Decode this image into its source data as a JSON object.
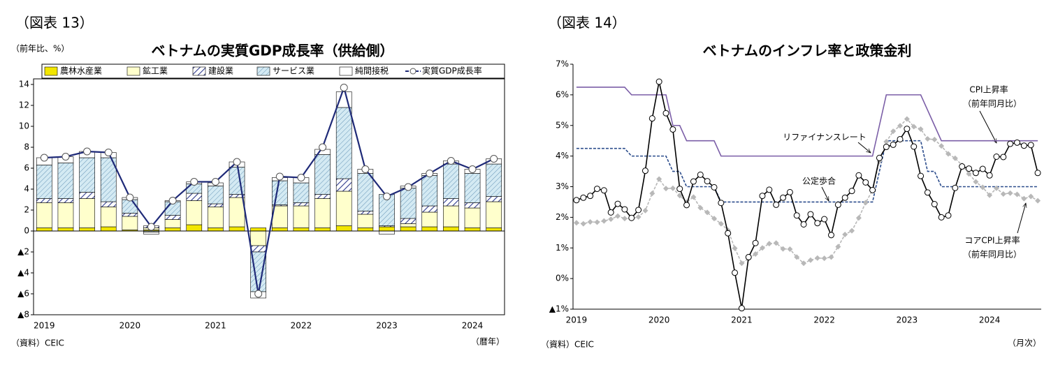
{
  "chart_data": [
    {
      "type": "bar",
      "stacked": true,
      "label": "（図表 13）",
      "title": "ベトナムの実質GDP成長率（供給側）",
      "y_label": "（前年比、%）",
      "source": "（資料）CEIC",
      "x_label": "（暦年）",
      "categories": [
        "2019",
        null,
        null,
        null,
        "2020",
        null,
        null,
        null,
        "2021",
        null,
        null,
        null,
        "2022",
        null,
        null,
        null,
        "2023",
        null,
        null,
        null,
        "2024",
        null
      ],
      "series": [
        {
          "name": "農林水産業",
          "color": "#f2e600",
          "values": [
            0.3,
            0.3,
            0.3,
            0.4,
            0.1,
            0.1,
            0.3,
            0.6,
            0.3,
            0.4,
            0.3,
            0.3,
            0.3,
            0.3,
            0.5,
            0.3,
            0.4,
            0.4,
            0.4,
            0.4,
            0.3,
            0.3
          ]
        },
        {
          "name": "鉱工業",
          "color": "#ffffcc",
          "values": [
            2.4,
            2.4,
            2.8,
            1.9,
            1.3,
            0.2,
            0.8,
            2.3,
            2.0,
            2.8,
            -1.4,
            2.1,
            2.1,
            2.8,
            3.3,
            1.3,
            0.0,
            0.3,
            1.4,
            2.0,
            1.9,
            2.5
          ]
        },
        {
          "name": "建設業",
          "color": "#ffffff",
          "hatch": "#2e3a8c",
          "values": [
            0.4,
            0.4,
            0.6,
            0.5,
            0.3,
            0.2,
            0.4,
            0.7,
            0.3,
            0.3,
            -0.6,
            0.1,
            0.3,
            0.4,
            1.2,
            0.3,
            0.1,
            0.5,
            0.6,
            0.7,
            0.5,
            0.5
          ]
        },
        {
          "name": "サービス業",
          "color": "#d4eaf3",
          "hatch": "#4a7fa8",
          "values": [
            3.2,
            3.4,
            3.3,
            4.2,
            1.3,
            -0.1,
            1.3,
            0.9,
            1.7,
            2.6,
            -3.8,
            2.3,
            1.9,
            3.8,
            6.8,
            3.6,
            3.0,
            2.9,
            2.9,
            3.3,
            2.8,
            3.1
          ]
        },
        {
          "name": "純間接税",
          "color": "#ffffff",
          "values": [
            0.7,
            0.6,
            0.6,
            0.5,
            0.2,
            -0.2,
            0.1,
            0.2,
            0.3,
            0.5,
            -0.6,
            0.3,
            0.5,
            0.5,
            1.5,
            0.4,
            -0.3,
            0.2,
            0.2,
            0.3,
            0.4,
            0.5
          ]
        },
        {
          "name": "実質GDP成長率",
          "type": "line",
          "color": "#1f2a78",
          "values": [
            7.0,
            7.1,
            7.6,
            7.5,
            3.2,
            0.4,
            2.9,
            4.7,
            4.7,
            6.6,
            -6.0,
            5.2,
            5.1,
            8.0,
            13.7,
            5.9,
            3.3,
            4.2,
            5.5,
            6.7,
            5.9,
            6.9
          ]
        }
      ],
      "ylim": [
        -8,
        14
      ],
      "yticks": [
        {
          "value": -8,
          "label": "▲8"
        },
        {
          "value": -6,
          "label": "▲6"
        },
        {
          "value": -4,
          "label": "▲4"
        },
        {
          "value": -2,
          "label": "▲2"
        },
        0,
        2,
        4,
        6,
        8,
        10,
        12,
        14
      ]
    },
    {
      "type": "line",
      "label": "（図表 14）",
      "title": "ベトナムのインフレ率と政策金利",
      "source": "（資料）CEIC",
      "x_label": "（月次）",
      "categories": [
        "2019",
        null,
        null,
        null,
        null,
        null,
        null,
        null,
        null,
        null,
        null,
        null,
        "2020",
        null,
        null,
        null,
        null,
        null,
        null,
        null,
        null,
        null,
        null,
        null,
        "2021",
        null,
        null,
        null,
        null,
        null,
        null,
        null,
        null,
        null,
        null,
        null,
        "2022",
        null,
        null,
        null,
        null,
        null,
        null,
        null,
        null,
        null,
        null,
        null,
        "2023",
        null,
        null,
        null,
        null,
        null,
        null,
        null,
        null,
        null,
        null,
        null,
        "2024",
        null,
        null,
        null,
        null,
        null,
        null,
        null
      ],
      "series": [
        {
          "name": "リファイナンスレート",
          "color": "#7b5ea7",
          "values": [
            6.25,
            6.25,
            6.25,
            6.25,
            6.25,
            6.25,
            6.25,
            6.25,
            6.0,
            6.0,
            6.0,
            6.0,
            6.0,
            6.0,
            5.0,
            5.0,
            4.5,
            4.5,
            4.5,
            4.5,
            4.5,
            4.0,
            4.0,
            4.0,
            4.0,
            4.0,
            4.0,
            4.0,
            4.0,
            4.0,
            4.0,
            4.0,
            4.0,
            4.0,
            4.0,
            4.0,
            4.0,
            4.0,
            4.0,
            4.0,
            4.0,
            4.0,
            4.0,
            4.0,
            5.0,
            6.0,
            6.0,
            6.0,
            6.0,
            6.0,
            6.0,
            5.5,
            5.0,
            4.5,
            4.5,
            4.5,
            4.5,
            4.5,
            4.5,
            4.5,
            4.5,
            4.5,
            4.5,
            4.5,
            4.5,
            4.5,
            4.5,
            4.5
          ]
        },
        {
          "name": "公定歩合",
          "color": "#2b4c8c",
          "dash": true,
          "values": [
            4.25,
            4.25,
            4.25,
            4.25,
            4.25,
            4.25,
            4.25,
            4.25,
            4.0,
            4.0,
            4.0,
            4.0,
            4.0,
            4.0,
            3.5,
            3.5,
            3.0,
            3.0,
            3.0,
            3.0,
            3.0,
            2.5,
            2.5,
            2.5,
            2.5,
            2.5,
            2.5,
            2.5,
            2.5,
            2.5,
            2.5,
            2.5,
            2.5,
            2.5,
            2.5,
            2.5,
            2.5,
            2.5,
            2.5,
            2.5,
            2.5,
            2.5,
            2.5,
            2.5,
            3.5,
            4.5,
            4.5,
            4.5,
            4.5,
            4.5,
            4.5,
            3.5,
            3.5,
            3.0,
            3.0,
            3.0,
            3.0,
            3.0,
            3.0,
            3.0,
            3.0,
            3.0,
            3.0,
            3.0,
            3.0,
            3.0,
            3.0,
            3.0
          ]
        },
        {
          "name": "コアCPI上昇率",
          "note": "（前年同月比）",
          "color": "#b8b8b8",
          "dash": true,
          "marker": "diamond",
          "values": [
            1.82,
            1.79,
            1.85,
            1.84,
            1.88,
            1.94,
            2.04,
            1.96,
            1.96,
            2.01,
            2.22,
            2.78,
            3.25,
            2.94,
            2.95,
            2.71,
            2.5,
            2.66,
            2.31,
            2.16,
            1.96,
            1.79,
            1.58,
            0.99,
            0.5,
            0.65,
            0.8,
            1.0,
            1.14,
            1.16,
            0.97,
            0.96,
            0.7,
            0.5,
            0.6,
            0.67,
            0.66,
            0.7,
            1.04,
            1.44,
            1.56,
            1.98,
            2.48,
            2.88,
            3.83,
            4.47,
            4.81,
            4.99,
            5.21,
            4.96,
            4.88,
            4.56,
            4.54,
            4.33,
            4.07,
            3.93,
            3.7,
            3.42,
            3.16,
            2.98,
            2.72,
            2.95,
            2.76,
            2.79,
            2.75,
            2.61,
            2.68,
            2.54
          ]
        },
        {
          "name": "CPI上昇率",
          "note": "（前年同月比）",
          "color": "#000000",
          "marker": "circle",
          "values": [
            2.56,
            2.64,
            2.7,
            2.93,
            2.88,
            2.16,
            2.44,
            2.26,
            1.98,
            2.24,
            3.52,
            5.23,
            6.43,
            5.4,
            4.87,
            2.93,
            2.4,
            3.17,
            3.39,
            3.18,
            2.98,
            2.47,
            1.48,
            0.19,
            -0.97,
            0.7,
            1.16,
            2.7,
            2.9,
            2.41,
            2.64,
            2.82,
            2.06,
            1.77,
            2.1,
            1.81,
            1.94,
            1.42,
            2.41,
            2.64,
            2.86,
            3.37,
            3.14,
            2.89,
            3.94,
            4.3,
            4.37,
            4.55,
            4.89,
            4.31,
            3.35,
            2.81,
            2.43,
            2.0,
            2.06,
            2.96,
            3.66,
            3.59,
            3.45,
            3.58,
            3.37,
            3.98,
            3.97,
            4.4,
            4.44,
            4.34,
            4.36,
            3.45
          ]
        }
      ],
      "ylim": [
        -1,
        7
      ],
      "yticks": [
        {
          "value": -1,
          "label": "▲1%"
        },
        {
          "value": 0,
          "label": "0%"
        },
        {
          "value": 1,
          "label": "1%"
        },
        {
          "value": 2,
          "label": "2%"
        },
        {
          "value": 3,
          "label": "3%"
        },
        {
          "value": 4,
          "label": "4%"
        },
        {
          "value": 5,
          "label": "5%"
        },
        {
          "value": 6,
          "label": "6%"
        },
        {
          "value": 7,
          "label": "7%"
        }
      ]
    }
  ]
}
